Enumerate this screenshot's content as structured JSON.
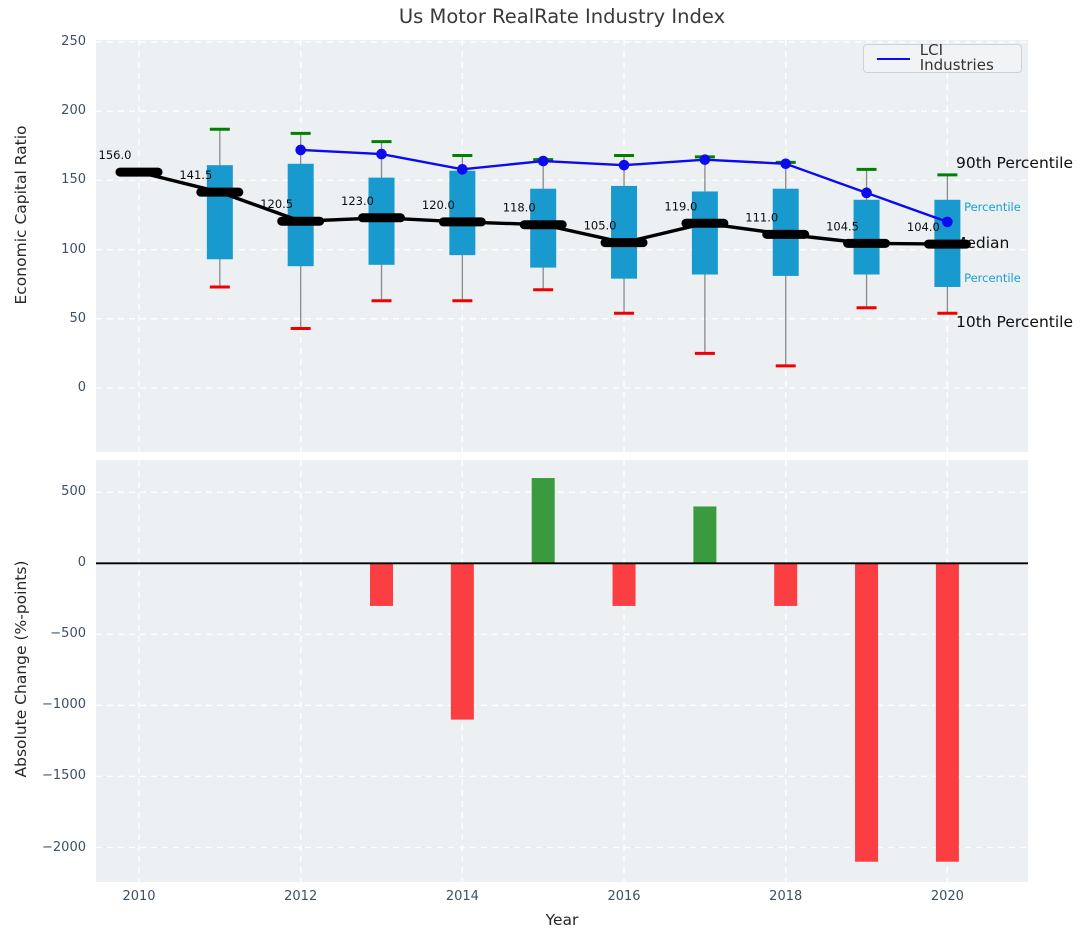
{
  "colors": {
    "plot_bg": "#edf0f2",
    "grid": "#ffffff",
    "box_fill": "#189ace",
    "whisker": "#8a8a8a",
    "cap_top_green": "#008000",
    "cap_bottom_red": "#f00000",
    "median_black": "#000000",
    "lci_blue": "#0b0bee",
    "bar_positive": "#3a9b3e",
    "bar_negative": "#fa3e41",
    "tick_label": "#3d5166",
    "annotation_cyan": "#18a0d4",
    "annotation_black": "#0f0f0f",
    "title": "#3a3a3a"
  },
  "chart_data": [
    {
      "type": "boxplot+line",
      "title": "Us Motor RealRate Industry Index",
      "ylabel": "Economic Capital Ratio",
      "ylim": [
        -46,
        251
      ],
      "yticks": [
        0,
        50,
        100,
        150,
        200,
        250
      ],
      "xticks": [
        2010,
        2012,
        2014,
        2016,
        2018,
        2020
      ],
      "grid": "white dashed on light grey",
      "legend": {
        "label": "LCI Industries",
        "position": "upper right"
      },
      "years": [
        2010,
        2011,
        2012,
        2013,
        2014,
        2015,
        2016,
        2017,
        2018,
        2019,
        2020
      ],
      "median": [
        156.0,
        141.5,
        120.5,
        123.0,
        120.0,
        118.0,
        105.0,
        119.0,
        111.0,
        104.5,
        104.0
      ],
      "median_labels": [
        "156.0",
        "141.5",
        "120.5",
        "123.0",
        "120.0",
        "118.0",
        "105.0",
        "119.0",
        "111.0",
        "104.5",
        "104.0"
      ],
      "q25": [
        null,
        93,
        88,
        89,
        96,
        87,
        79,
        82,
        81,
        82,
        73
      ],
      "q75": [
        null,
        161,
        162,
        152,
        157,
        144,
        146,
        142,
        144,
        136,
        136
      ],
      "p10": [
        null,
        73,
        43,
        63,
        63,
        71,
        54,
        25,
        16,
        58,
        54
      ],
      "p90": [
        null,
        187,
        184,
        178,
        168,
        165,
        168,
        167,
        163,
        158,
        154
      ],
      "series": [
        {
          "name": "LCI Industries",
          "values": [
            null,
            null,
            172,
            169,
            158,
            164,
            161,
            165,
            162,
            141,
            120
          ]
        }
      ],
      "annotations": [
        {
          "label": "90th Percentile",
          "style": "black"
        },
        {
          "label": "75th Percentile",
          "style": "cyan"
        },
        {
          "label": "Median",
          "style": "black"
        },
        {
          "label": "25th Percentile",
          "style": "cyan"
        },
        {
          "label": "10th Percentile",
          "style": "black"
        }
      ]
    },
    {
      "type": "bar",
      "ylabel": "Absolute Change (%-points)",
      "xlabel": "Year",
      "ylim": [
        -2240,
        727
      ],
      "yticks": [
        500,
        0,
        -500,
        -1000,
        -1500,
        -2000
      ],
      "xticks": [
        2010,
        2012,
        2014,
        2016,
        2018,
        2020
      ],
      "zero_line": true,
      "years": [
        2013,
        2014,
        2015,
        2016,
        2017,
        2018,
        2019,
        2020
      ],
      "values": [
        -300,
        -1100,
        600,
        -300,
        400,
        -300,
        -2100,
        -2100
      ]
    }
  ]
}
